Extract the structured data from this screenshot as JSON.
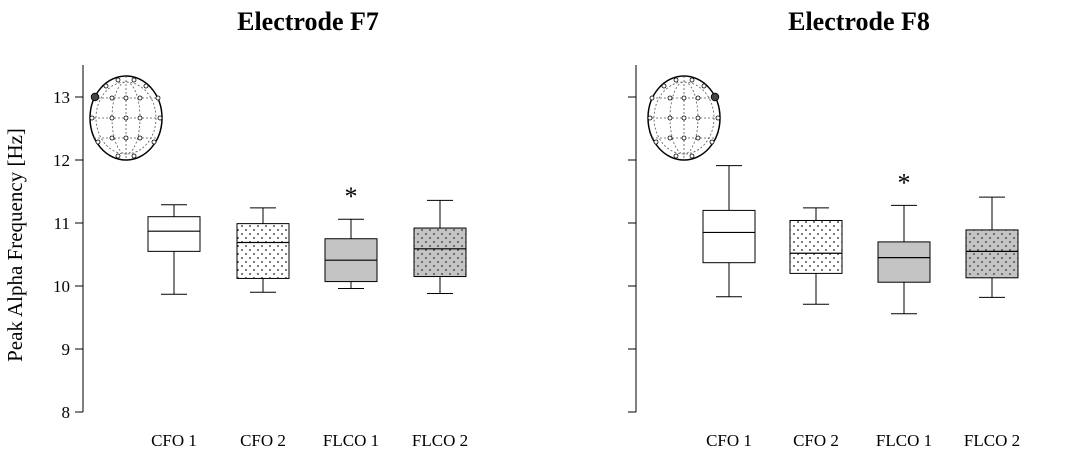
{
  "figure": {
    "ylabel": "Peak Alpha Frequency [Hz]"
  },
  "chart_data": [
    {
      "type": "box",
      "title": "Electrode F7",
      "xlabel": "",
      "ylabel": "Peak Alpha Frequency [Hz]",
      "ylim": [
        8,
        13.5
      ],
      "yticks": [
        8,
        9,
        10,
        11,
        12,
        13
      ],
      "categories": [
        "CFO 1",
        "CFO 2",
        "FLCO 1",
        "FLCO 2"
      ],
      "boxes": [
        {
          "min": 9.87,
          "q1": 10.55,
          "median": 10.87,
          "q3": 11.1,
          "max": 11.29,
          "fill": "white"
        },
        {
          "min": 9.9,
          "q1": 10.12,
          "median": 10.69,
          "q3": 10.99,
          "max": 11.24,
          "fill": "dotted-white"
        },
        {
          "min": 9.96,
          "q1": 10.07,
          "median": 10.41,
          "q3": 10.75,
          "max": 11.06,
          "fill": "gray"
        },
        {
          "min": 9.88,
          "q1": 10.15,
          "median": 10.59,
          "q3": 10.92,
          "max": 11.36,
          "fill": "dotted-gray"
        }
      ],
      "annotations": [
        {
          "category": "FLCO 1",
          "text": "*"
        }
      ]
    },
    {
      "type": "box",
      "title": "Electrode F8",
      "xlabel": "",
      "ylabel": "",
      "ylim": [
        8,
        13.5
      ],
      "yticks": [
        8,
        9,
        10,
        11,
        12,
        13
      ],
      "categories": [
        "CFO 1",
        "CFO 2",
        "FLCO 1",
        "FLCO 2"
      ],
      "boxes": [
        {
          "min": 9.83,
          "q1": 10.37,
          "median": 10.85,
          "q3": 11.2,
          "max": 11.91,
          "fill": "white"
        },
        {
          "min": 9.71,
          "q1": 10.2,
          "median": 10.52,
          "q3": 11.04,
          "max": 11.24,
          "fill": "dotted-white"
        },
        {
          "min": 9.56,
          "q1": 10.06,
          "median": 10.45,
          "q3": 10.7,
          "max": 11.28,
          "fill": "gray"
        },
        {
          "min": 9.82,
          "q1": 10.13,
          "median": 10.55,
          "q3": 10.89,
          "max": 11.41,
          "fill": "dotted-gray"
        }
      ],
      "annotations": [
        {
          "category": "FLCO 1",
          "text": "*"
        }
      ]
    }
  ]
}
